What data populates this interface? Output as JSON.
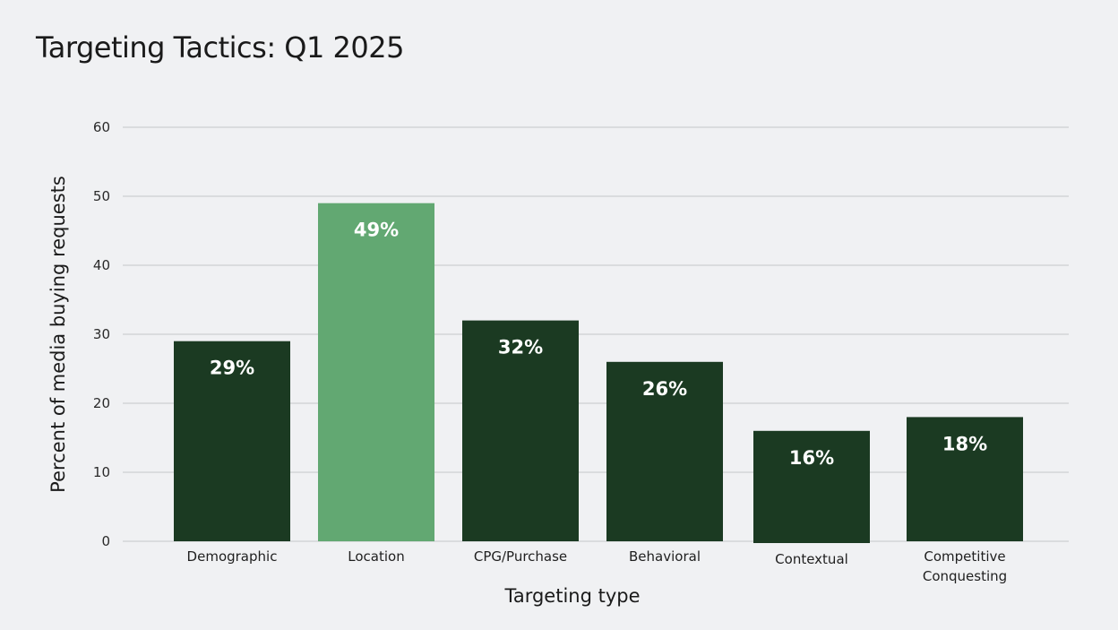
{
  "chart_data": {
    "type": "bar",
    "title": "Targeting Tactics: Q1 2025",
    "xlabel": "Targeting type",
    "ylabel": "Percent of media buying requests",
    "ylim": [
      0,
      60
    ],
    "yticks": [
      0,
      10,
      20,
      30,
      40,
      50,
      60
    ],
    "grid": true,
    "categories": [
      [
        "Demographic"
      ],
      [
        "Location"
      ],
      [
        "CPG/Purchase"
      ],
      [
        "Behavioral"
      ],
      [
        "Contextual"
      ],
      [
        "Competitive",
        "Conquesting"
      ]
    ],
    "values": [
      29,
      49,
      32,
      26,
      16,
      18
    ],
    "data_labels": [
      "29%",
      "49%",
      "32%",
      "26%",
      "16%",
      "18%"
    ],
    "highlight_index": 1,
    "colors": {
      "bar": "#1b3a22",
      "highlight": "#62a872"
    }
  }
}
